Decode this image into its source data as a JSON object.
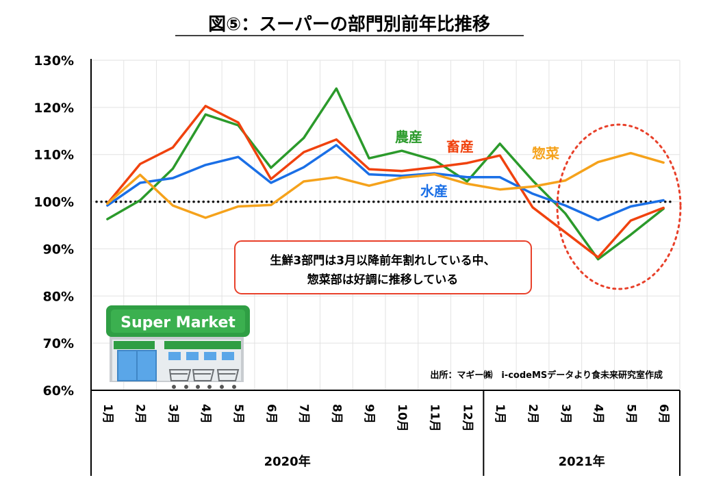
{
  "chart_data": {
    "type": "line",
    "title": "図⑤：スーパーの部門別前年比推移",
    "ylim": [
      60,
      130
    ],
    "y_ticks": [
      60,
      70,
      80,
      90,
      100,
      110,
      120,
      130
    ],
    "y_tick_labels": [
      "60%",
      "70%",
      "80%",
      "90%",
      "100%",
      "110%",
      "120%",
      "130%"
    ],
    "categories": [
      "1月",
      "2月",
      "3月",
      "4月",
      "5月",
      "6月",
      "7月",
      "8月",
      "9月",
      "10月",
      "11月",
      "12月",
      "1月",
      "2月",
      "3月",
      "4月",
      "5月",
      "6月"
    ],
    "year_groups": [
      {
        "label": "2020年",
        "count": 12
      },
      {
        "label": "2021年",
        "count": 6
      }
    ],
    "reference_line": 100,
    "grid": true,
    "series": [
      {
        "name": "農産",
        "color": "#2b9a2b",
        "values": [
          96.3,
          100.3,
          107.0,
          118.5,
          116.2,
          107.2,
          113.5,
          124.0,
          109.2,
          110.8,
          108.8,
          104.3,
          112.3,
          104.5,
          97.5,
          87.8,
          93.0,
          98.5
        ]
      },
      {
        "name": "畜産",
        "color": "#f0420e",
        "values": [
          99.6,
          108.0,
          111.5,
          120.3,
          116.8,
          104.8,
          110.5,
          113.2,
          106.9,
          106.5,
          107.3,
          108.2,
          109.8,
          98.8,
          93.5,
          88.2,
          96.0,
          98.7
        ]
      },
      {
        "name": "水産",
        "color": "#1a6fe6",
        "values": [
          99.2,
          104.0,
          105.0,
          107.8,
          109.5,
          104.0,
          107.3,
          112.0,
          105.8,
          105.5,
          106.0,
          105.2,
          105.2,
          101.7,
          99.2,
          96.1,
          99.0,
          100.3
        ]
      },
      {
        "name": "惣菜",
        "color": "#f5a21b",
        "values": [
          99.6,
          105.7,
          99.2,
          96.6,
          99.0,
          99.3,
          104.3,
          105.2,
          103.4,
          105.1,
          105.8,
          103.8,
          102.6,
          103.2,
          104.5,
          108.4,
          110.3,
          108.3
        ]
      }
    ],
    "annotation": [
      "生鮮3部門は3月以降前年割れしている中、",
      "惣菜部は好調に推移している"
    ],
    "source": "出所：マギー㈱　i-codeMSデータより食未来研究室作成",
    "illustration_sign": "Super Market"
  }
}
